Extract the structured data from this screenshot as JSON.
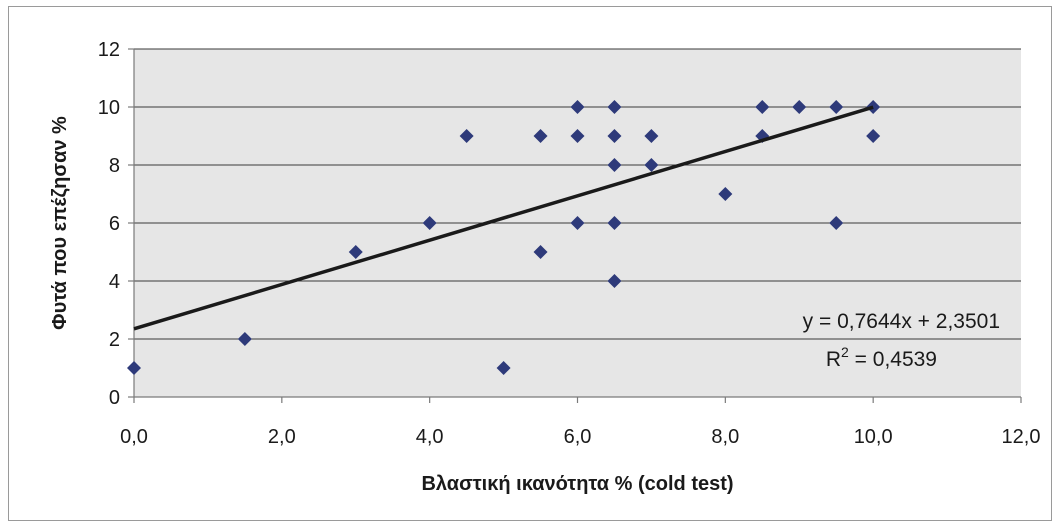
{
  "chart_data": {
    "type": "scatter",
    "xlabel": "Βλαστική ικανότητα % (cold test)",
    "ylabel": "Φυτά που επέζησαν %",
    "xlim": [
      0,
      12
    ],
    "ylim": [
      0,
      12
    ],
    "x_ticks": [
      "0,0",
      "2,0",
      "4,0",
      "6,0",
      "8,0",
      "10,0",
      "12,0"
    ],
    "y_ticks": [
      "0",
      "2",
      "4",
      "6",
      "8",
      "10",
      "12"
    ],
    "x_tick_values": [
      0,
      2,
      4,
      6,
      8,
      10,
      12
    ],
    "y_tick_values": [
      0,
      2,
      4,
      6,
      8,
      10,
      12
    ],
    "grid": "horizontal",
    "points": [
      {
        "x": 0,
        "y": 1
      },
      {
        "x": 1.5,
        "y": 2
      },
      {
        "x": 3,
        "y": 5
      },
      {
        "x": 4,
        "y": 6
      },
      {
        "x": 4.5,
        "y": 9
      },
      {
        "x": 5,
        "y": 1
      },
      {
        "x": 5.5,
        "y": 5
      },
      {
        "x": 5.5,
        "y": 9
      },
      {
        "x": 6,
        "y": 6
      },
      {
        "x": 6,
        "y": 9
      },
      {
        "x": 6,
        "y": 10
      },
      {
        "x": 6.5,
        "y": 4
      },
      {
        "x": 6.5,
        "y": 6
      },
      {
        "x": 6.5,
        "y": 8
      },
      {
        "x": 6.5,
        "y": 9
      },
      {
        "x": 6.5,
        "y": 10
      },
      {
        "x": 7,
        "y": 8
      },
      {
        "x": 7,
        "y": 9
      },
      {
        "x": 8,
        "y": 7
      },
      {
        "x": 8.5,
        "y": 9
      },
      {
        "x": 8.5,
        "y": 10
      },
      {
        "x": 9,
        "y": 10
      },
      {
        "x": 9.5,
        "y": 6
      },
      {
        "x": 9.5,
        "y": 10
      },
      {
        "x": 10,
        "y": 9
      },
      {
        "x": 10,
        "y": 10
      }
    ],
    "trendline": {
      "slope": 0.7644,
      "intercept": 2.3501,
      "x_range": [
        0,
        10
      ]
    },
    "equation_text": "y = 0,7644x + 2,3501",
    "r2_label": "R",
    "r2_exponent": "2",
    "r2_value_text": " = 0,4539",
    "colors": {
      "marker": "#2e3a7a",
      "trendline": "#1a1a1a",
      "plot_background": "#e6e6e6",
      "gridline": "#3a3a3a",
      "axis": "#7a7a7a"
    }
  }
}
